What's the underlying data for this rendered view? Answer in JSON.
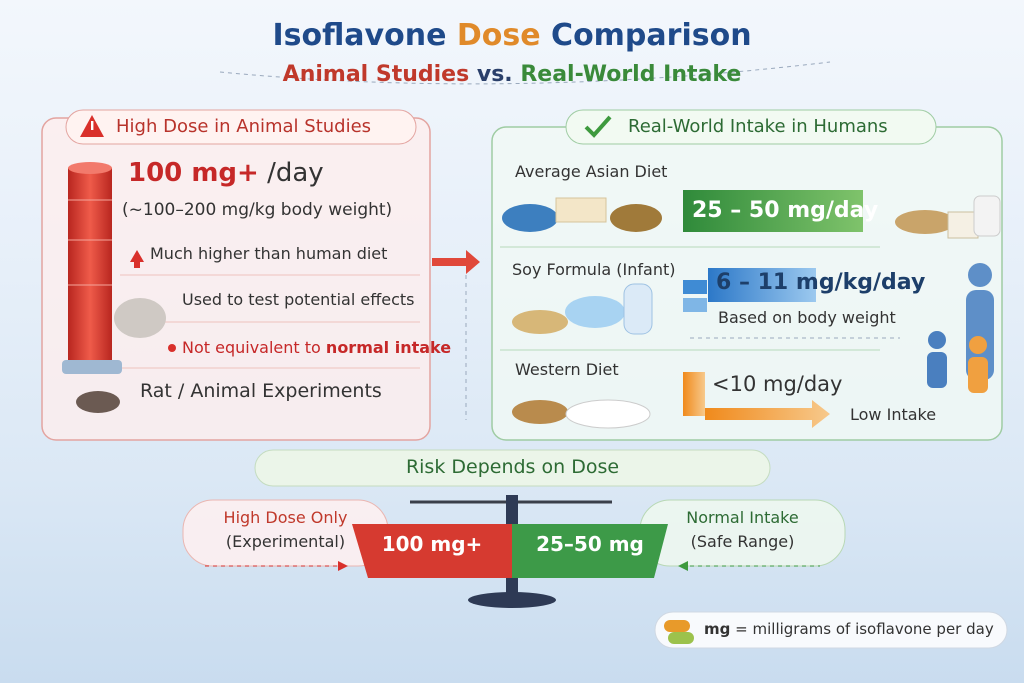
{
  "header": {
    "title": {
      "start": "Isoflavone",
      "highlight": "Dose",
      "end": "Comparison"
    },
    "subtitle": {
      "left": "Animal Studies",
      "middle": "vs.",
      "right": "Real-World Intake"
    }
  },
  "animal_panel": {
    "heading": "High Dose in Animal Studies",
    "dose": "100 mg+",
    "dose_unit": "/day",
    "dose_note": "(~100–200 mg/kg body weight)",
    "points": [
      "Much higher than human diet",
      "Used to test potential effects"
    ],
    "caution": {
      "start": "Not equivalent to",
      "highlight": "normal intake"
    },
    "footer": "Rat / Animal Experiments"
  },
  "human_panel": {
    "heading": "Real-World Intake in Humans",
    "rows": [
      {
        "label": "Average Asian Diet",
        "amount": "25 – 50 mg/day"
      },
      {
        "label": "Soy Formula (Infant)",
        "amount": "6 – 11 mg/kg/day",
        "note": "Based on body weight"
      },
      {
        "label": "Western Diet",
        "amount": "<10 mg/day",
        "note": "Low Intake"
      }
    ]
  },
  "risk": {
    "heading": "Risk Depends on Dose",
    "left": {
      "line1": "High Dose Only",
      "line2": "(Experimental)"
    },
    "left_pan": "100 mg+",
    "right_pan": "25–50 mg",
    "right": {
      "line1": "Normal Intake",
      "line2": "(Safe Range)"
    }
  },
  "footnote": {
    "term": "mg",
    "definition": "= milligrams of isoflavone per day"
  }
}
